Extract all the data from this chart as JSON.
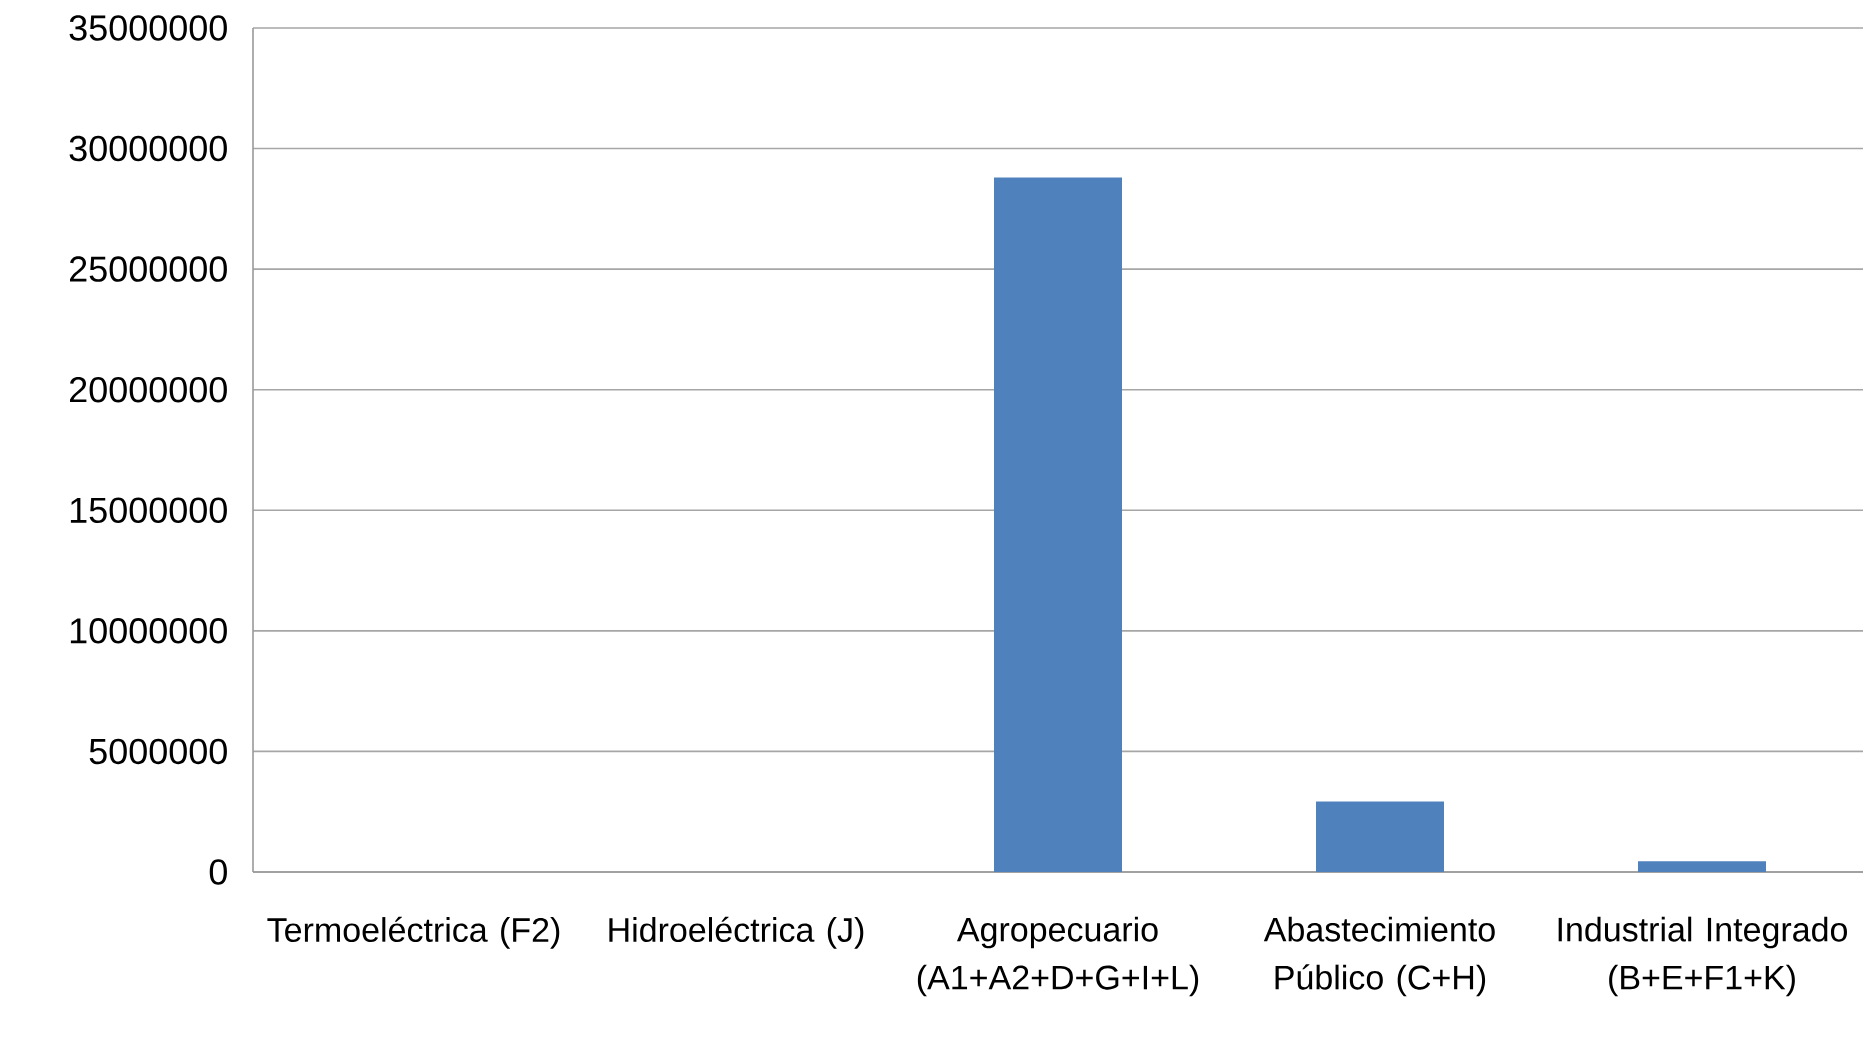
{
  "chart_data": {
    "type": "bar",
    "categories": [
      "Termoeléctrica (F2)",
      "Hidroeléctrica (J)",
      "Agropecuario (A1+A2+D+G+I+L)",
      "Abastecimiento Público (C+H)",
      "Industrial Integrado (B+E+F1+K)"
    ],
    "values": [
      0,
      0,
      28800000,
      2920000,
      450000
    ],
    "color": "#4f81bd",
    "ylim": [
      0,
      35000000
    ],
    "yticks": [
      0,
      5000000,
      10000000,
      15000000,
      20000000,
      25000000,
      30000000,
      35000000
    ],
    "grid": "y"
  }
}
